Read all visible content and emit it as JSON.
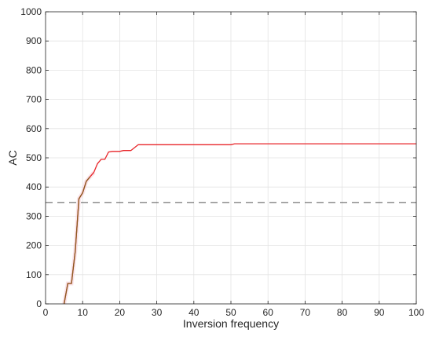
{
  "chart_data": {
    "type": "line",
    "title": "",
    "xlabel": "Inversion frequency",
    "ylabel": "AC",
    "xlim": [
      0,
      100
    ],
    "ylim": [
      0,
      1000
    ],
    "xticks": [
      "0",
      "10",
      "20",
      "30",
      "40",
      "50",
      "60",
      "70",
      "80",
      "90",
      "100"
    ],
    "yticks": [
      "0",
      "100",
      "200",
      "300",
      "400",
      "500",
      "600",
      "700",
      "800",
      "900",
      "1000"
    ],
    "grid": true,
    "legend": "none",
    "series": [
      {
        "color": "#e8262a",
        "early_color": "#8a5a1e",
        "x": [
          5,
          6,
          7,
          8,
          9,
          10,
          11,
          12,
          13,
          14,
          15,
          16,
          17,
          18,
          19,
          20,
          21,
          22,
          23,
          24,
          25,
          26,
          30,
          40,
          50,
          51,
          60,
          70,
          80,
          90,
          100
        ],
        "y": [
          0,
          70,
          70,
          180,
          360,
          380,
          420,
          435,
          450,
          480,
          495,
          495,
          520,
          522,
          522,
          522,
          525,
          525,
          525,
          535,
          545,
          545,
          545,
          545,
          545,
          548,
          548,
          548,
          548,
          548,
          548
        ]
      }
    ],
    "reference_line": {
      "y": 347,
      "style": "dashed",
      "color": "#555555"
    }
  }
}
